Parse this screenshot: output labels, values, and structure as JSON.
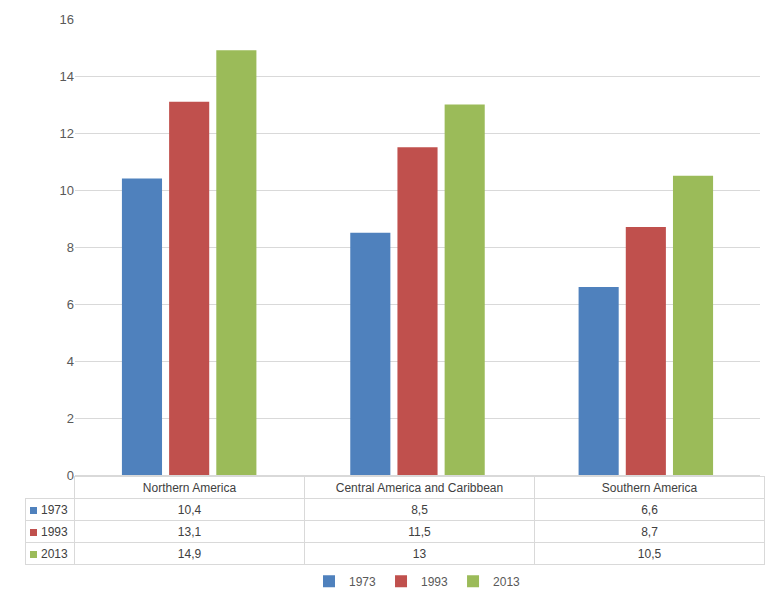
{
  "chart_data": {
    "type": "bar",
    "categories": [
      "Northern America",
      "Central America and Caribbean",
      "Southern America"
    ],
    "series": [
      {
        "name": "1973",
        "color": "#4f81bd",
        "values": [
          10.4,
          8.5,
          6.6
        ],
        "value_labels": [
          "10,4",
          "8,5",
          "6,6"
        ]
      },
      {
        "name": "1993",
        "color": "#c0504d",
        "values": [
          13.1,
          11.5,
          8.7
        ],
        "value_labels": [
          "13,1",
          "11,5",
          "8,7"
        ]
      },
      {
        "name": "2013",
        "color": "#9bbb59",
        "values": [
          14.9,
          13,
          10.5
        ],
        "value_labels": [
          "14,9",
          "13",
          "10,5"
        ]
      }
    ],
    "ylim": [
      0,
      16
    ],
    "yticks": [
      0,
      2,
      4,
      6,
      8,
      10,
      12,
      14,
      16
    ],
    "grid": true,
    "legend": "bottom",
    "tick_labels": "y"
  }
}
